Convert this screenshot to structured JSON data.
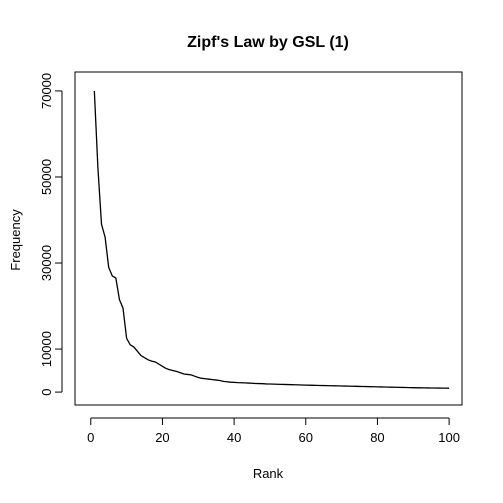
{
  "chart_data": {
    "type": "line",
    "title": "Zipf's Law by GSL (1)",
    "x_label": "Rank",
    "y_label": "Frequency",
    "x": [
      1,
      2,
      3,
      4,
      5,
      6,
      7,
      8,
      9,
      10,
      11,
      12,
      13,
      14,
      15,
      16,
      17,
      18,
      19,
      20,
      21,
      22,
      23,
      24,
      25,
      26,
      27,
      28,
      29,
      30,
      31,
      32,
      33,
      34,
      35,
      36,
      37,
      38,
      39,
      40,
      41,
      42,
      43,
      44,
      45,
      46,
      47,
      48,
      49,
      50,
      51,
      52,
      53,
      54,
      55,
      56,
      57,
      58,
      59,
      60,
      61,
      62,
      63,
      64,
      65,
      66,
      67,
      68,
      69,
      70,
      71,
      72,
      73,
      74,
      75,
      76,
      77,
      78,
      79,
      80,
      81,
      82,
      83,
      84,
      85,
      86,
      87,
      88,
      89,
      90,
      91,
      92,
      93,
      94,
      95,
      96,
      97,
      98,
      99,
      100
    ],
    "values": [
      70000,
      52000,
      39000,
      36000,
      29000,
      27000,
      26500,
      21500,
      19500,
      12500,
      11000,
      10500,
      9500,
      8500,
      8000,
      7500,
      7200,
      7000,
      6500,
      6000,
      5500,
      5200,
      5000,
      4800,
      4500,
      4200,
      4100,
      4000,
      3700,
      3400,
      3200,
      3100,
      3000,
      2900,
      2800,
      2700,
      2500,
      2400,
      2300,
      2250,
      2200,
      2180,
      2150,
      2100,
      2050,
      2000,
      1980,
      1950,
      1900,
      1880,
      1850,
      1820,
      1800,
      1780,
      1750,
      1720,
      1700,
      1680,
      1650,
      1620,
      1600,
      1580,
      1560,
      1540,
      1520,
      1500,
      1480,
      1460,
      1440,
      1420,
      1400,
      1380,
      1360,
      1340,
      1320,
      1300,
      1280,
      1260,
      1240,
      1220,
      1200,
      1180,
      1160,
      1140,
      1120,
      1100,
      1080,
      1060,
      1040,
      1020,
      1000,
      990,
      980,
      970,
      960,
      950,
      940,
      930,
      920,
      910
    ],
    "color": "#000000",
    "xlim": [
      -4.4,
      103.6
    ],
    "xticks": [
      0,
      20,
      40,
      60,
      80,
      100
    ],
    "ylim": [
      -3000,
      74400
    ],
    "yticks": [
      0,
      10000,
      30000,
      50000,
      70000
    ]
  }
}
